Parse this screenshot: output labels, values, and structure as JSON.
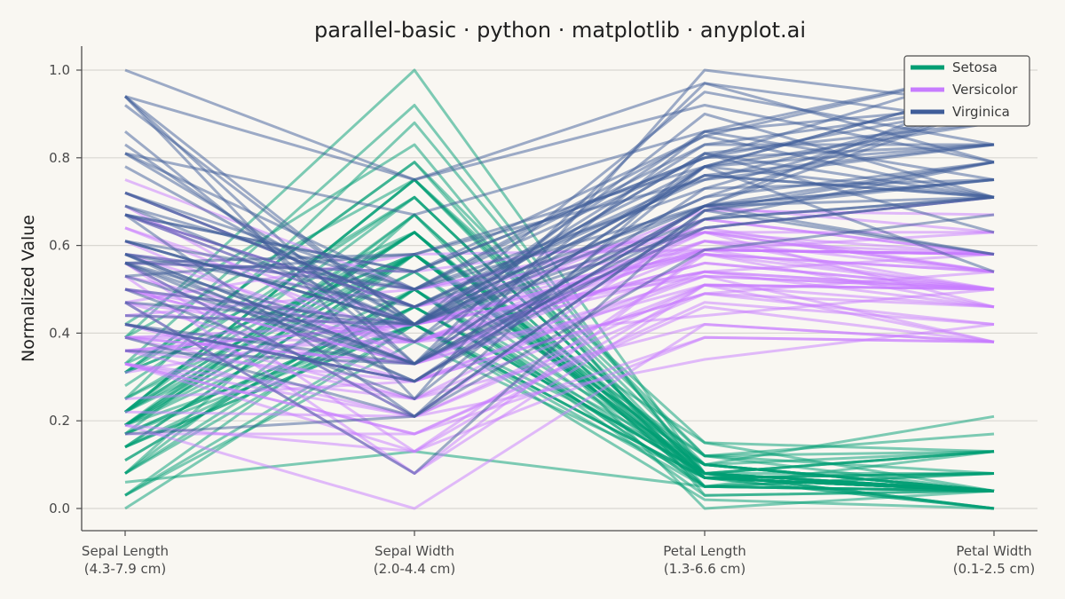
{
  "chart_data": {
    "type": "line",
    "title": "parallel-basic · python · matplotlib · anyplot.ai",
    "ylabel": "Normalized Value",
    "xlabel": "",
    "ylim": [
      0,
      1
    ],
    "yticks": [
      "0.0",
      "0.2",
      "0.4",
      "0.6",
      "0.8",
      "1.0"
    ],
    "grid": "horizontal",
    "legend_position": "top-right",
    "axes": [
      {
        "name": "Sepal Length",
        "range": "(4.3-7.9 cm)"
      },
      {
        "name": "Sepal Width",
        "range": "(2.0-4.4 cm)"
      },
      {
        "name": "Petal Length",
        "range": "(1.3-6.6 cm)"
      },
      {
        "name": "Petal Width",
        "range": "(0.1-2.5 cm)"
      }
    ],
    "colors": {
      "Setosa": "#009e73",
      "Versicolor": "#c77cff",
      "Virginica": "#3f5d99"
    },
    "series": [
      {
        "name": "Setosa",
        "lines": [
          [
            0.22,
            0.63,
            0.07,
            0.04
          ],
          [
            0.17,
            0.42,
            0.07,
            0.04
          ],
          [
            0.11,
            0.5,
            0.05,
            0.04
          ],
          [
            0.08,
            0.46,
            0.08,
            0.04
          ],
          [
            0.19,
            0.67,
            0.07,
            0.04
          ],
          [
            0.31,
            0.79,
            0.12,
            0.13
          ],
          [
            0.08,
            0.58,
            0.07,
            0.08
          ],
          [
            0.19,
            0.58,
            0.08,
            0.04
          ],
          [
            0.03,
            0.38,
            0.07,
            0.04
          ],
          [
            0.17,
            0.46,
            0.08,
            0.0
          ],
          [
            0.31,
            0.71,
            0.08,
            0.04
          ],
          [
            0.14,
            0.58,
            0.1,
            0.04
          ],
          [
            0.14,
            0.42,
            0.07,
            0.0
          ],
          [
            0.0,
            0.42,
            0.02,
            0.0
          ],
          [
            0.42,
            0.83,
            0.03,
            0.04
          ],
          [
            0.39,
            1.0,
            0.08,
            0.13
          ],
          [
            0.31,
            0.79,
            0.05,
            0.13
          ],
          [
            0.22,
            0.63,
            0.07,
            0.08
          ],
          [
            0.39,
            0.75,
            0.12,
            0.08
          ],
          [
            0.22,
            0.75,
            0.08,
            0.08
          ],
          [
            0.31,
            0.58,
            0.12,
            0.04
          ],
          [
            0.22,
            0.71,
            0.08,
            0.13
          ],
          [
            0.08,
            0.67,
            0.0,
            0.04
          ],
          [
            0.22,
            0.54,
            0.12,
            0.17
          ],
          [
            0.14,
            0.58,
            0.15,
            0.04
          ],
          [
            0.19,
            0.42,
            0.1,
            0.04
          ],
          [
            0.19,
            0.58,
            0.1,
            0.13
          ],
          [
            0.25,
            0.63,
            0.08,
            0.04
          ],
          [
            0.25,
            0.58,
            0.07,
            0.04
          ],
          [
            0.11,
            0.5,
            0.1,
            0.04
          ],
          [
            0.14,
            0.46,
            0.1,
            0.04
          ],
          [
            0.31,
            0.58,
            0.08,
            0.13
          ],
          [
            0.25,
            0.88,
            0.08,
            0.0
          ],
          [
            0.33,
            0.92,
            0.07,
            0.04
          ],
          [
            0.17,
            0.46,
            0.08,
            0.0
          ],
          [
            0.19,
            0.5,
            0.03,
            0.04
          ],
          [
            0.33,
            0.63,
            0.05,
            0.04
          ],
          [
            0.17,
            0.67,
            0.07,
            0.0
          ],
          [
            0.03,
            0.42,
            0.05,
            0.04
          ],
          [
            0.22,
            0.58,
            0.08,
            0.04
          ],
          [
            0.19,
            0.63,
            0.05,
            0.08
          ],
          [
            0.06,
            0.13,
            0.05,
            0.08
          ],
          [
            0.03,
            0.5,
            0.05,
            0.04
          ],
          [
            0.19,
            0.63,
            0.1,
            0.21
          ],
          [
            0.22,
            0.75,
            0.15,
            0.13
          ],
          [
            0.14,
            0.42,
            0.07,
            0.08
          ],
          [
            0.22,
            0.75,
            0.1,
            0.04
          ],
          [
            0.08,
            0.5,
            0.07,
            0.04
          ],
          [
            0.28,
            0.71,
            0.08,
            0.04
          ],
          [
            0.19,
            0.54,
            0.07,
            0.04
          ]
        ]
      },
      {
        "name": "Versicolor",
        "lines": [
          [
            0.75,
            0.5,
            0.63,
            0.54
          ],
          [
            0.58,
            0.5,
            0.59,
            0.58
          ],
          [
            0.72,
            0.46,
            0.66,
            0.58
          ],
          [
            0.33,
            0.13,
            0.51,
            0.5
          ],
          [
            0.61,
            0.33,
            0.61,
            0.58
          ],
          [
            0.39,
            0.33,
            0.59,
            0.5
          ],
          [
            0.56,
            0.54,
            0.63,
            0.63
          ],
          [
            0.17,
            0.17,
            0.39,
            0.38
          ],
          [
            0.64,
            0.38,
            0.61,
            0.5
          ],
          [
            0.25,
            0.29,
            0.49,
            0.54
          ],
          [
            0.19,
            0.0,
            0.42,
            0.38
          ],
          [
            0.44,
            0.42,
            0.54,
            0.58
          ],
          [
            0.47,
            0.08,
            0.51,
            0.38
          ],
          [
            0.5,
            0.38,
            0.63,
            0.54
          ],
          [
            0.36,
            0.38,
            0.44,
            0.5
          ],
          [
            0.67,
            0.46,
            0.58,
            0.54
          ],
          [
            0.36,
            0.42,
            0.59,
            0.58
          ],
          [
            0.42,
            0.29,
            0.53,
            0.38
          ],
          [
            0.53,
            0.08,
            0.59,
            0.58
          ],
          [
            0.36,
            0.21,
            0.49,
            0.42
          ],
          [
            0.44,
            0.5,
            0.64,
            0.71
          ],
          [
            0.5,
            0.33,
            0.51,
            0.5
          ],
          [
            0.56,
            0.21,
            0.66,
            0.58
          ],
          [
            0.5,
            0.33,
            0.63,
            0.46
          ],
          [
            0.58,
            0.38,
            0.56,
            0.5
          ],
          [
            0.64,
            0.42,
            0.58,
            0.54
          ],
          [
            0.69,
            0.33,
            0.64,
            0.54
          ],
          [
            0.67,
            0.42,
            0.68,
            0.67
          ],
          [
            0.47,
            0.38,
            0.59,
            0.58
          ],
          [
            0.39,
            0.25,
            0.42,
            0.38
          ],
          [
            0.33,
            0.17,
            0.47,
            0.42
          ],
          [
            0.33,
            0.17,
            0.46,
            0.38
          ],
          [
            0.42,
            0.29,
            0.49,
            0.46
          ],
          [
            0.47,
            0.29,
            0.69,
            0.63
          ],
          [
            0.31,
            0.42,
            0.59,
            0.58
          ],
          [
            0.47,
            0.58,
            0.59,
            0.63
          ],
          [
            0.67,
            0.46,
            0.63,
            0.58
          ],
          [
            0.56,
            0.13,
            0.58,
            0.5
          ],
          [
            0.36,
            0.42,
            0.53,
            0.5
          ],
          [
            0.33,
            0.21,
            0.51,
            0.5
          ],
          [
            0.33,
            0.25,
            0.58,
            0.46
          ],
          [
            0.5,
            0.42,
            0.61,
            0.54
          ],
          [
            0.42,
            0.25,
            0.51,
            0.46
          ],
          [
            0.19,
            0.13,
            0.39,
            0.38
          ],
          [
            0.36,
            0.29,
            0.54,
            0.5
          ],
          [
            0.39,
            0.42,
            0.54,
            0.46
          ],
          [
            0.39,
            0.38,
            0.54,
            0.5
          ],
          [
            0.53,
            0.38,
            0.56,
            0.5
          ],
          [
            0.22,
            0.21,
            0.34,
            0.42
          ],
          [
            0.39,
            0.33,
            0.53,
            0.5
          ]
        ]
      },
      {
        "name": "Virginica",
        "lines": [
          [
            0.56,
            0.54,
            0.85,
            1.0
          ],
          [
            0.42,
            0.29,
            0.69,
            0.75
          ],
          [
            0.78,
            0.42,
            0.83,
            0.83
          ],
          [
            0.56,
            0.38,
            0.78,
            0.71
          ],
          [
            0.61,
            0.42,
            0.81,
            0.88
          ],
          [
            0.92,
            0.42,
            0.95,
            0.83
          ],
          [
            0.17,
            0.21,
            0.59,
            0.67
          ],
          [
            0.83,
            0.38,
            0.9,
            0.71
          ],
          [
            0.67,
            0.21,
            0.81,
            0.71
          ],
          [
            0.81,
            0.67,
            0.86,
            1.0
          ],
          [
            0.61,
            0.5,
            0.69,
            0.79
          ],
          [
            0.58,
            0.29,
            0.73,
            0.75
          ],
          [
            0.69,
            0.42,
            0.76,
            0.83
          ],
          [
            0.39,
            0.21,
            0.68,
            0.79
          ],
          [
            0.42,
            0.33,
            0.69,
            0.96
          ],
          [
            0.58,
            0.5,
            0.73,
            0.92
          ],
          [
            0.61,
            0.42,
            0.76,
            0.71
          ],
          [
            0.94,
            0.75,
            0.97,
            0.88
          ],
          [
            0.94,
            0.25,
            1.0,
            0.92
          ],
          [
            0.47,
            0.08,
            0.68,
            0.58
          ],
          [
            0.72,
            0.5,
            0.8,
            0.92
          ],
          [
            0.36,
            0.33,
            0.66,
            0.79
          ],
          [
            0.94,
            0.33,
            0.97,
            0.79
          ],
          [
            0.56,
            0.29,
            0.66,
            0.71
          ],
          [
            0.67,
            0.54,
            0.8,
            0.83
          ],
          [
            0.81,
            0.5,
            0.85,
            0.71
          ],
          [
            0.53,
            0.33,
            0.64,
            0.71
          ],
          [
            0.5,
            0.42,
            0.66,
            0.71
          ],
          [
            0.58,
            0.33,
            0.78,
            0.83
          ],
          [
            0.81,
            0.42,
            0.81,
            0.63
          ],
          [
            0.86,
            0.33,
            0.86,
            0.75
          ],
          [
            1.0,
            0.75,
            0.92,
            0.79
          ],
          [
            0.58,
            0.33,
            0.78,
            0.88
          ],
          [
            0.56,
            0.33,
            0.69,
            0.58
          ],
          [
            0.5,
            0.25,
            0.78,
            0.54
          ],
          [
            0.94,
            0.42,
            0.86,
            0.92
          ],
          [
            0.56,
            0.58,
            0.78,
            0.96
          ],
          [
            0.58,
            0.46,
            0.76,
            0.71
          ],
          [
            0.47,
            0.42,
            0.64,
            0.71
          ],
          [
            0.72,
            0.46,
            0.75,
            0.83
          ],
          [
            0.67,
            0.46,
            0.78,
            0.96
          ],
          [
            0.72,
            0.46,
            0.69,
            0.92
          ],
          [
            0.42,
            0.29,
            0.69,
            0.75
          ],
          [
            0.69,
            0.5,
            0.83,
            0.92
          ],
          [
            0.67,
            0.54,
            0.8,
            1.0
          ],
          [
            0.67,
            0.42,
            0.71,
            0.92
          ],
          [
            0.56,
            0.21,
            0.68,
            0.75
          ],
          [
            0.61,
            0.42,
            0.71,
            0.79
          ],
          [
            0.53,
            0.58,
            0.75,
            0.92
          ],
          [
            0.44,
            0.42,
            0.69,
            0.71
          ]
        ]
      }
    ]
  }
}
